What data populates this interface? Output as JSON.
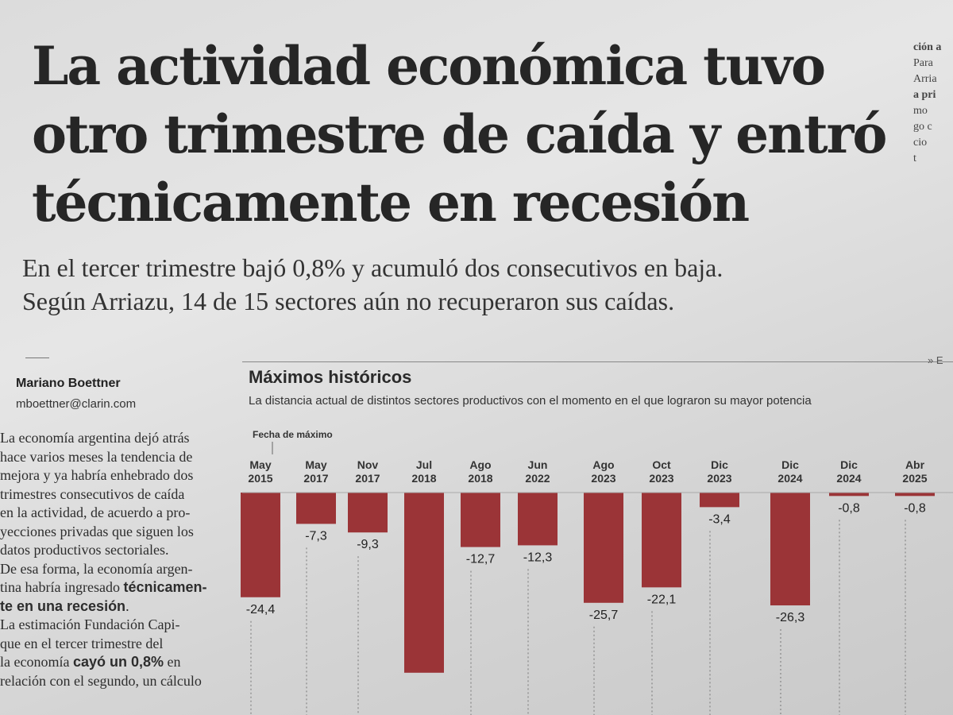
{
  "headline": [
    "La actividad económica tuvo",
    "otro trimestre de caída y entró",
    "técnicamente en recesión"
  ],
  "subhead": [
    "En el tercer trimestre bajó 0,8% y acumuló dos consecutivos en baja.",
    "Según Arriazu, 14 de 15 sectores aún no recuperaron sus caídas."
  ],
  "right_column": [
    "ción a",
    "Para",
    "Arria",
    "a pri",
    "mo",
    "go c",
    "cio",
    "",
    "t"
  ],
  "byline": {
    "author": "Mariano Boettner",
    "email": "mboettner@clarin.com"
  },
  "body": [
    {
      "t": "La economía argentina dejó atrás"
    },
    {
      "t": "hace varios meses la tendencia de"
    },
    {
      "t": "mejora y ya habría enhebrado dos"
    },
    {
      "t": "trimestres consecutivos de caída"
    },
    {
      "t": "en la actividad, de acuerdo a pro-"
    },
    {
      "t": "yecciones privadas que siguen los"
    },
    {
      "t": "datos productivos sectoriales."
    },
    {
      "t": "De esa forma, la economía argen-"
    },
    {
      "t": "tina habría ingresado ",
      "b": "técnicamen-"
    },
    {
      "b": "te en una recesión",
      "t2": "."
    },
    {
      "t": "La estimación Fundación Capi-"
    },
    {
      "t": "que en el tercer trimestre del"
    },
    {
      "t": "la economía ",
      "b": "cayó un 0,8%",
      "t2": " en"
    },
    {
      "t": "relación con el segundo, un cálculo"
    }
  ],
  "chart_link_text": "» E",
  "chart_data": {
    "type": "bar",
    "title": "Máximos históricos",
    "subtitle": "La distancia actual de distintos sectores productivos con el momento en el que lograron su mayor potencia",
    "header_label": "Fecha de máximo",
    "categories": [
      [
        "May",
        "2015"
      ],
      [
        "May",
        "2017"
      ],
      [
        "Nov",
        "2017"
      ],
      [
        "Jul",
        "2018"
      ],
      [
        "Ago",
        "2018"
      ],
      [
        "Jun",
        "2022"
      ],
      [
        "Ago",
        "2023"
      ],
      [
        "Oct",
        "2023"
      ],
      [
        "Dic",
        "2023"
      ],
      [
        "Dic",
        "2024"
      ],
      [
        "Dic",
        "2024"
      ],
      [
        "Abr",
        "2025"
      ]
    ],
    "values": [
      -24.4,
      -7.3,
      -9.3,
      null,
      -12.7,
      -12.3,
      -25.7,
      -22.1,
      -3.4,
      -26.3,
      -0.8,
      -0.8
    ],
    "labels": [
      "-24,4",
      "-7,3",
      "-9,3",
      "",
      "-12,7",
      "-12,3",
      "-25,7",
      "-22,1",
      "-3,4",
      "-26,3",
      "-0,8",
      "-0,8"
    ],
    "bar_color": "#9b3437",
    "ylim": [
      -30,
      0
    ]
  }
}
